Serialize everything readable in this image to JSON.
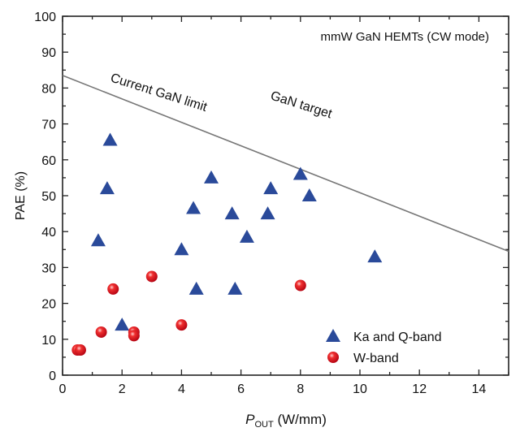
{
  "chart_data": {
    "type": "scatter",
    "xlabel_main": "P",
    "xlabel_sub": "OUT",
    "xlabel_unit": " (W/mm)",
    "ylabel": "PAE (%)",
    "xlim": [
      0,
      15
    ],
    "ylim": [
      0,
      100
    ],
    "xticks": [
      0,
      2,
      4,
      6,
      8,
      10,
      12,
      14
    ],
    "yticks": [
      0,
      10,
      20,
      30,
      40,
      50,
      60,
      70,
      80,
      90,
      100
    ],
    "grid": false,
    "legend_position": "bottom-right",
    "annotations": {
      "title": "mmW GaN HEMTs (CW mode)",
      "limit_label": "Current GaN limit",
      "target_label": "GaN target"
    },
    "limit_line": {
      "x": [
        0,
        15
      ],
      "y": [
        83.5,
        34.5
      ],
      "color": "#777777"
    },
    "series": [
      {
        "name": "Ka and Q-band",
        "marker": "triangle",
        "color": "#2a4a9a",
        "points": [
          [
            1.2,
            37.5
          ],
          [
            1.5,
            52
          ],
          [
            1.6,
            65.5
          ],
          [
            2,
            14
          ],
          [
            4,
            35
          ],
          [
            4.4,
            46.5
          ],
          [
            4.5,
            24
          ],
          [
            5,
            55
          ],
          [
            5.7,
            45
          ],
          [
            5.8,
            24
          ],
          [
            6.2,
            38.5
          ],
          [
            6.9,
            45
          ],
          [
            7,
            52
          ],
          [
            8,
            56
          ],
          [
            8.3,
            50
          ],
          [
            10.5,
            33
          ]
        ]
      },
      {
        "name": "W-band",
        "marker": "circle",
        "color": "#e0141e",
        "points": [
          [
            0.5,
            7
          ],
          [
            0.6,
            7
          ],
          [
            1.3,
            12
          ],
          [
            1.7,
            24
          ],
          [
            2.4,
            12
          ],
          [
            2.4,
            11
          ],
          [
            3,
            27.5
          ],
          [
            4,
            14
          ],
          [
            8,
            25
          ]
        ]
      }
    ]
  }
}
